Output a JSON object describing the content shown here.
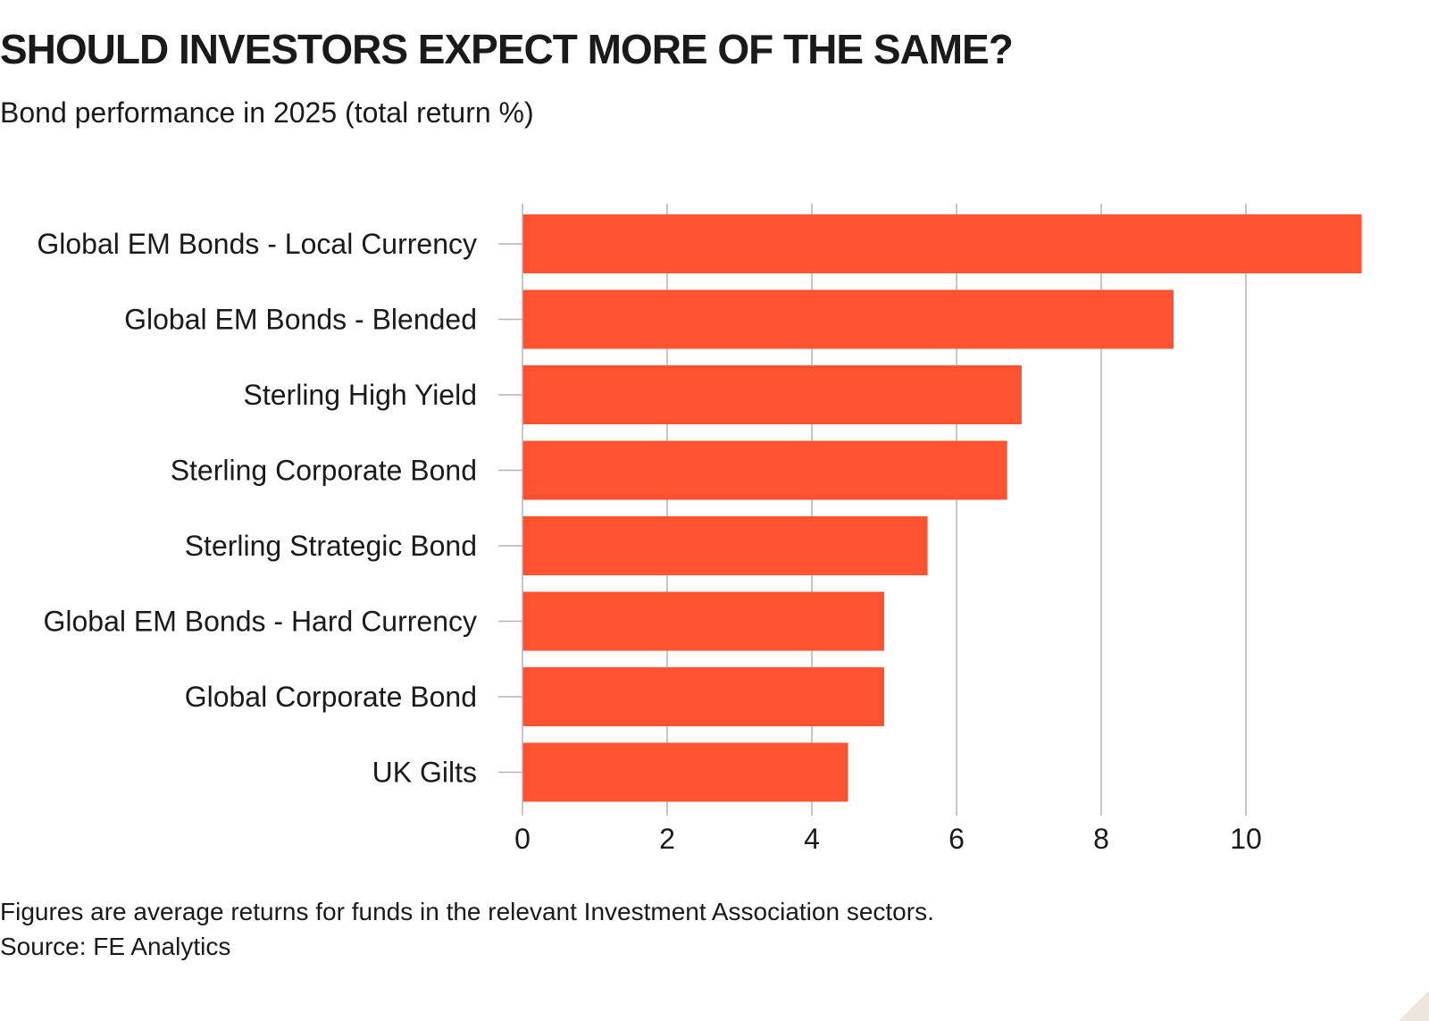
{
  "chart_data": {
    "type": "bar",
    "orientation": "horizontal",
    "title": "SHOULD INVESTORS EXPECT MORE OF THE SAME?",
    "subtitle": "Bond performance in 2025 (total return %)",
    "categories": [
      "Global EM Bonds - Local Currency",
      "Global EM Bonds - Blended",
      "Sterling High Yield",
      "Sterling Corporate Bond",
      "Sterling Strategic Bond",
      "Global EM Bonds - Hard Currency",
      "Global Corporate Bond",
      "UK Gilts"
    ],
    "values": [
      11.6,
      9.0,
      6.9,
      6.7,
      5.6,
      5.0,
      5.0,
      4.5
    ],
    "xticks": [
      0,
      2,
      4,
      6,
      8,
      10
    ],
    "xlim": [
      0,
      11.7
    ],
    "xlabel": "",
    "ylabel": "",
    "grid": true,
    "bar_color": "#ff5230",
    "grid_color": "#b3b3b3"
  },
  "footnotes": {
    "note": "Figures are average returns for funds in the relevant Investment Association sectors.",
    "source": "Source: FE Analytics"
  }
}
